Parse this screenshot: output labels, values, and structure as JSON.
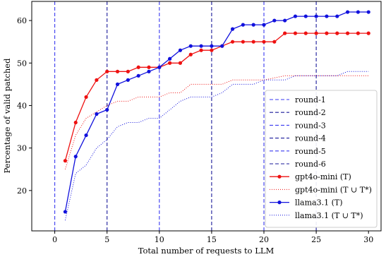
{
  "chart_data": {
    "type": "line",
    "xlabel": "Total number of requests to LLM",
    "ylabel": "Percentage of valid patched",
    "xlim": [
      -2.2,
      31.2
    ],
    "ylim": [
      10.5,
      64.5
    ],
    "xticks": [
      0,
      5,
      10,
      15,
      20,
      25,
      30
    ],
    "yticks": [
      20,
      30,
      40,
      50,
      60
    ],
    "grid": false,
    "legend_position": "bottom-right",
    "rounds": [
      {
        "name": "round-1",
        "x": 0,
        "color": "#3a3af0"
      },
      {
        "name": "round-2",
        "x": 5,
        "color": "#1a1a9a"
      },
      {
        "name": "round-3",
        "x": 10,
        "color": "#3a3af0"
      },
      {
        "name": "round-4",
        "x": 15,
        "color": "#1a1a9a"
      },
      {
        "name": "round-5",
        "x": 20,
        "color": "#3a3af0"
      },
      {
        "name": "round-6",
        "x": 25,
        "color": "#1a1a9a"
      }
    ],
    "x": [
      1,
      2,
      3,
      4,
      5,
      6,
      7,
      8,
      9,
      10,
      11,
      12,
      13,
      14,
      15,
      16,
      17,
      18,
      19,
      20,
      21,
      22,
      23,
      24,
      25,
      26,
      27,
      28,
      29,
      30
    ],
    "series": [
      {
        "name": "gpt4o-mini (T)",
        "color": "#ee1111",
        "style": "solid-marker",
        "values": [
          27,
          36,
          42,
          46,
          48,
          48,
          48,
          49,
          49,
          49,
          50,
          50,
          52,
          53,
          53,
          54,
          55,
          55,
          55,
          55,
          55,
          57,
          57,
          57,
          57,
          57,
          57,
          57,
          57,
          57
        ]
      },
      {
        "name": "gpt4o-mini (T ∪ T*)",
        "color": "#ee1111",
        "style": "dotted",
        "values": [
          25,
          33,
          37,
          38.5,
          40,
          41,
          41,
          42,
          42,
          42,
          43,
          43,
          45,
          45,
          45,
          45,
          46,
          46,
          46,
          46,
          46.5,
          47,
          47,
          47,
          47,
          47,
          47,
          47,
          47,
          47
        ]
      },
      {
        "name": "llama3.1 (T)",
        "color": "#1111dd",
        "style": "solid-marker",
        "values": [
          15,
          28,
          33,
          38,
          39,
          45,
          46,
          47,
          48,
          49,
          51,
          53,
          54,
          54,
          54,
          54,
          58,
          59,
          59,
          59,
          60,
          60,
          61,
          61,
          61,
          61,
          61,
          62,
          62,
          62
        ]
      },
      {
        "name": "llama3.1 (T ∪ T*)",
        "color": "#1111dd",
        "style": "dotted",
        "values": [
          13,
          24,
          26,
          30,
          32,
          35,
          36,
          36,
          37,
          37,
          39,
          41,
          42,
          42,
          42,
          43,
          45,
          45,
          45,
          46,
          46,
          46,
          47,
          47,
          47,
          47,
          47,
          48,
          48,
          48
        ]
      }
    ]
  }
}
